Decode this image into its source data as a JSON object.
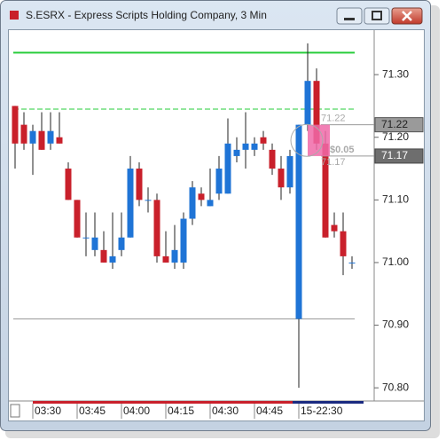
{
  "window": {
    "title": "S.ESRX - Express Scripts Holding Company, 3 Min"
  },
  "chart_data": {
    "type": "candlestick",
    "categories": [
      null,
      null,
      "03:30",
      null,
      null,
      null,
      null,
      "03:45",
      null,
      null,
      null,
      null,
      "04:00",
      null,
      null,
      null,
      null,
      "04:15",
      null,
      null,
      null,
      null,
      "04:30",
      null,
      null,
      null,
      null,
      "04:45",
      null,
      null,
      null,
      null,
      "15-22:30",
      null,
      null,
      null,
      null,
      null,
      null
    ],
    "open": [
      71.25,
      71.22,
      71.19,
      71.21,
      71.19,
      71.2,
      71.15,
      71.1,
      71.04,
      71.02,
      71.02,
      71.0,
      71.02,
      71.04,
      71.15,
      71.1,
      71.1,
      71.01,
      71.0,
      71.0,
      71.07,
      71.11,
      71.09,
      71.11,
      71.11,
      71.17,
      71.18,
      71.18,
      71.2,
      71.18,
      71.15,
      71.12,
      70.91,
      71.22,
      71.29,
      71.19,
      71.06,
      71.05,
      71.0
    ],
    "high": [
      71.25,
      71.24,
      71.22,
      71.24,
      71.24,
      71.24,
      71.16,
      71.1,
      71.08,
      71.08,
      71.05,
      71.08,
      71.08,
      71.17,
      71.16,
      71.12,
      71.11,
      71.05,
      71.06,
      71.08,
      71.13,
      71.12,
      71.15,
      71.17,
      71.23,
      71.2,
      71.24,
      71.2,
      71.21,
      71.19,
      71.17,
      71.18,
      71.22,
      71.35,
      71.31,
      71.21,
      71.08,
      71.08,
      71.01
    ],
    "low": [
      71.15,
      71.18,
      71.14,
      71.18,
      71.18,
      71.19,
      71.1,
      71.04,
      71.01,
      71.01,
      71.0,
      70.99,
      71.01,
      71.04,
      71.09,
      71.08,
      71.0,
      71.0,
      70.99,
      70.99,
      71.06,
      71.09,
      71.09,
      71.1,
      71.11,
      71.16,
      71.15,
      71.17,
      71.18,
      71.14,
      71.1,
      71.11,
      70.8,
      71.21,
      71.18,
      71.04,
      71.04,
      70.98,
      70.99
    ],
    "close": [
      71.19,
      71.19,
      71.21,
      71.18,
      71.21,
      71.19,
      71.1,
      71.04,
      71.04,
      71.04,
      71.0,
      71.01,
      71.04,
      71.15,
      71.1,
      71.1,
      71.01,
      71.0,
      71.02,
      71.07,
      71.12,
      71.1,
      71.1,
      71.15,
      71.19,
      71.18,
      71.19,
      71.19,
      71.19,
      71.15,
      71.12,
      71.17,
      71.22,
      71.29,
      71.19,
      71.04,
      71.05,
      71.01,
      71.0
    ],
    "up_color": "#1f74d6",
    "down_color": "#c9202b",
    "ylim": [
      70.779,
      71.371
    ],
    "yticks": [
      {
        "value": 71.3,
        "label": "71.30"
      },
      {
        "value": 71.2,
        "label": "71.20"
      },
      {
        "value": 71.1,
        "label": "71.10"
      },
      {
        "value": 71.0,
        "label": "71.00"
      },
      {
        "value": 70.9,
        "label": "70.90"
      },
      {
        "value": 70.8,
        "label": "70.80"
      }
    ],
    "levels": [
      {
        "value": 71.335,
        "color": "#26cc3a",
        "style": "solid"
      },
      {
        "value": 71.245,
        "color": "#26cc3a",
        "style": "dashed"
      },
      {
        "value": 70.91,
        "color": "#9a9a9a",
        "style": "solid"
      }
    ],
    "order": {
      "high": 71.22,
      "low": 71.17,
      "spread": {
        "value": 0.05,
        "label": "$0.05"
      }
    }
  }
}
